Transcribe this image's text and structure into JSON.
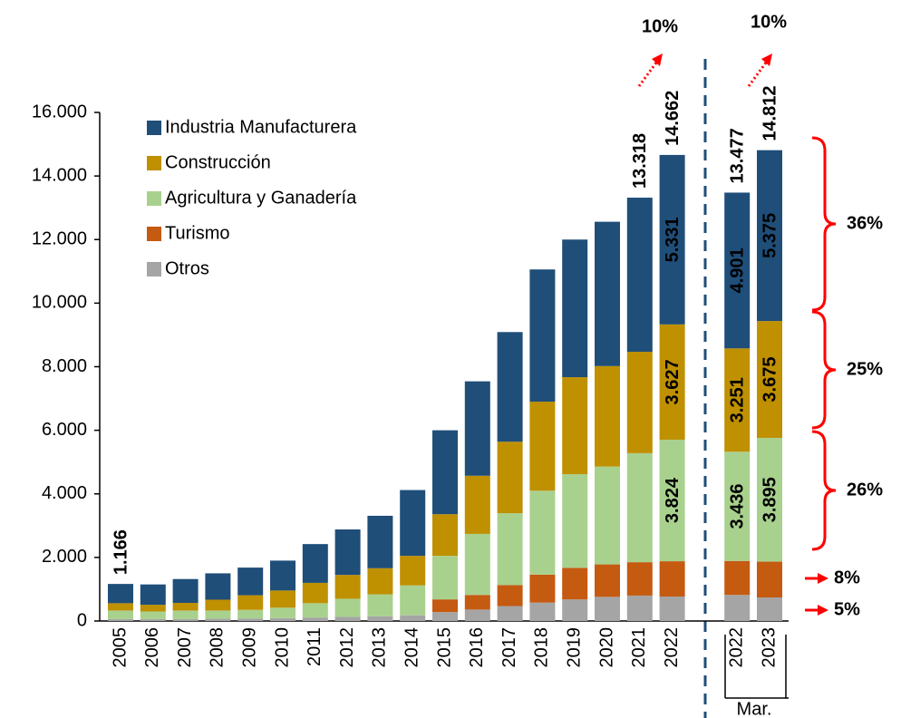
{
  "chart_data": {
    "type": "bar",
    "categories": [
      "2005",
      "2006",
      "2007",
      "2008",
      "2009",
      "2010",
      "2011",
      "2012",
      "2013",
      "2014",
      "2015",
      "2016",
      "2017",
      "2018",
      "2019",
      "2020",
      "2021",
      "2022",
      null,
      "2022",
      "2023"
    ],
    "group_label": "Mar.",
    "series": [
      {
        "name": "Otros",
        "color": "#a5a5a5",
        "values": [
          60,
          60,
          60,
          70,
          80,
          90,
          110,
          130,
          150,
          180,
          280,
          360,
          470,
          580,
          680,
          760,
          800,
          770,
          null,
          820,
          740
        ]
      },
      {
        "name": "Turismo",
        "color": "#c55a11",
        "values": [
          0,
          0,
          0,
          0,
          0,
          0,
          0,
          0,
          0,
          0,
          400,
          460,
          660,
          880,
          990,
          1020,
          1050,
          1110,
          null,
          1069,
          1127
        ]
      },
      {
        "name": "Agricultura y Ganadería",
        "color": "#a9d18e",
        "values": [
          270,
          240,
          270,
          260,
          270,
          330,
          450,
          570,
          690,
          940,
          1370,
          1920,
          2260,
          2640,
          2950,
          3080,
          3430,
          3824,
          null,
          3436,
          3895
        ],
        "value_labels": [
          null,
          null,
          null,
          null,
          null,
          null,
          null,
          null,
          null,
          null,
          null,
          null,
          null,
          null,
          null,
          null,
          null,
          "3.824",
          null,
          "3.436",
          "3.895"
        ]
      },
      {
        "name": "Construcción",
        "color": "#bf9000",
        "values": [
          230,
          210,
          240,
          340,
          460,
          540,
          640,
          750,
          820,
          930,
          1310,
          1830,
          2250,
          2800,
          3050,
          3160,
          3190,
          3627,
          null,
          3251,
          3675
        ],
        "value_labels": [
          null,
          null,
          null,
          null,
          null,
          null,
          null,
          null,
          null,
          null,
          null,
          null,
          null,
          null,
          null,
          null,
          null,
          "3.627",
          null,
          "3.251",
          "3.675"
        ]
      },
      {
        "name": "Industria Manufacturera",
        "color": "#1f4e79",
        "values": [
          606,
          640,
          750,
          830,
          870,
          940,
          1220,
          1430,
          1650,
          2070,
          2640,
          2970,
          3450,
          4160,
          4330,
          4540,
          4848,
          5331,
          null,
          4901,
          5375
        ],
        "value_labels": [
          null,
          null,
          null,
          null,
          null,
          null,
          null,
          null,
          null,
          null,
          null,
          null,
          null,
          null,
          null,
          null,
          null,
          "5.331",
          null,
          "4.901",
          "5.375"
        ]
      }
    ],
    "totals": [
      1166,
      null,
      null,
      null,
      null,
      null,
      null,
      null,
      null,
      null,
      null,
      null,
      null,
      null,
      null,
      null,
      13318,
      14662,
      null,
      13477,
      14812
    ],
    "total_labels": [
      "1.166",
      null,
      null,
      null,
      null,
      null,
      null,
      null,
      null,
      null,
      null,
      null,
      null,
      null,
      null,
      null,
      "13.318",
      "14.662",
      null,
      "13.477",
      "14.812"
    ],
    "ylim": [
      0,
      16000
    ],
    "yticks": [
      0,
      {
        "value": 2000,
        "label": "2.000"
      },
      {
        "value": 4000,
        "label": "4.000"
      },
      {
        "value": 6000,
        "label": "6.000"
      },
      {
        "value": 8000,
        "label": "8.000"
      },
      {
        "value": 10000,
        "label": "10.000"
      },
      {
        "value": 12000,
        "label": "12.000"
      },
      {
        "value": 14000,
        "label": "14.000"
      },
      {
        "value": 16000,
        "label": "16.000"
      }
    ],
    "growth_labels": [
      "10%",
      "10%"
    ],
    "share_labels": [
      "36%",
      "25%",
      "26%",
      "8%",
      "5%"
    ],
    "legend": "upper-left"
  }
}
